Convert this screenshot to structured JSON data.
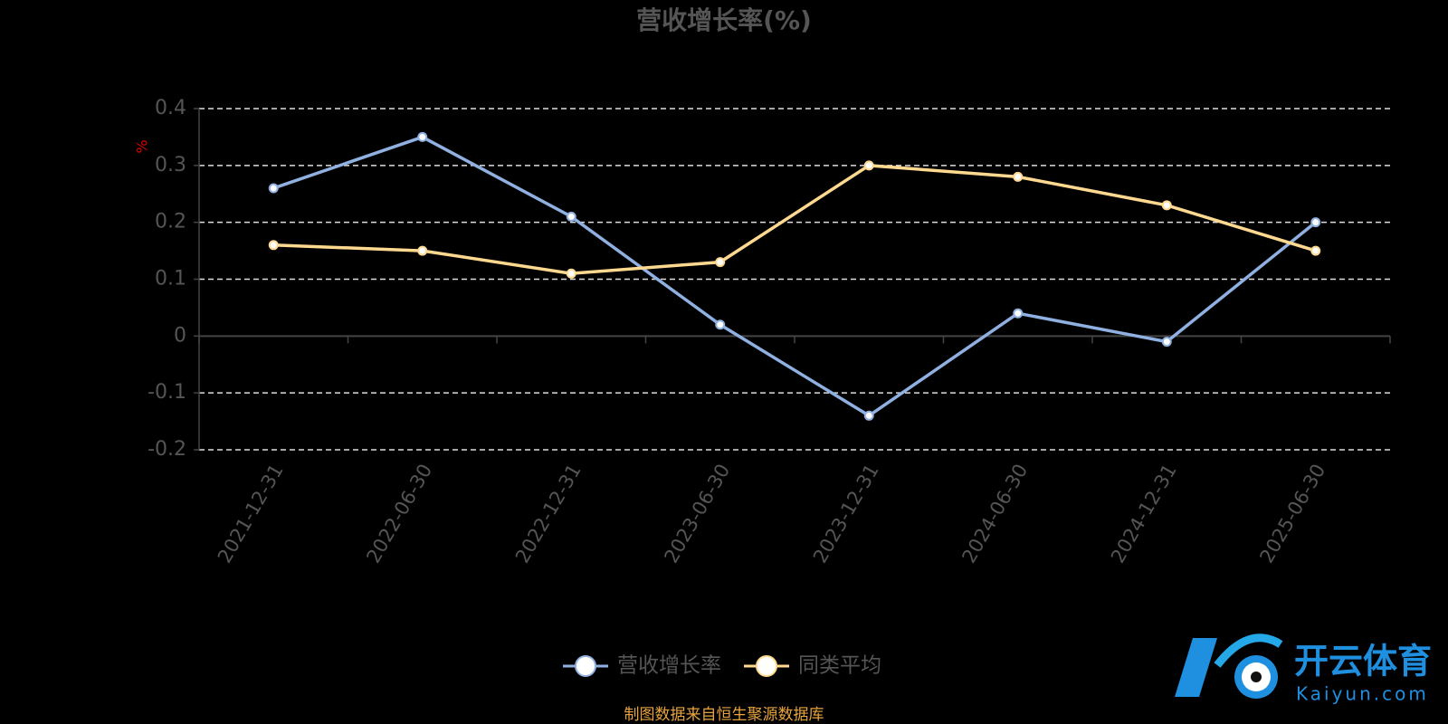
{
  "chart_data": {
    "type": "line",
    "title": "营收增长率(%)",
    "y_label": "%",
    "categories": [
      "2021-12-31",
      "2022-06-30",
      "2022-12-31",
      "2023-06-30",
      "2023-12-31",
      "2024-06-30",
      "2024-12-31",
      "2025-06-30"
    ],
    "series": [
      {
        "name": "营收增长率",
        "color": "#8fb0e0",
        "values": [
          0.26,
          0.35,
          0.21,
          0.02,
          -0.14,
          0.04,
          -0.01,
          0.2
        ]
      },
      {
        "name": "同类平均",
        "color": "#ffd98f",
        "values": [
          0.16,
          0.15,
          0.11,
          0.13,
          0.3,
          0.28,
          0.23,
          0.15
        ]
      }
    ],
    "ylim": [
      -0.2,
      0.4
    ],
    "yticks": [
      -0.2,
      -0.1,
      0,
      0.1,
      0.2,
      0.3,
      0.4
    ],
    "grid": true,
    "legend": "bottom",
    "source": "制图数据来自恒生聚源数据库",
    "watermark": {
      "name": "开云体育",
      "url": "Kaiyun.com"
    }
  }
}
